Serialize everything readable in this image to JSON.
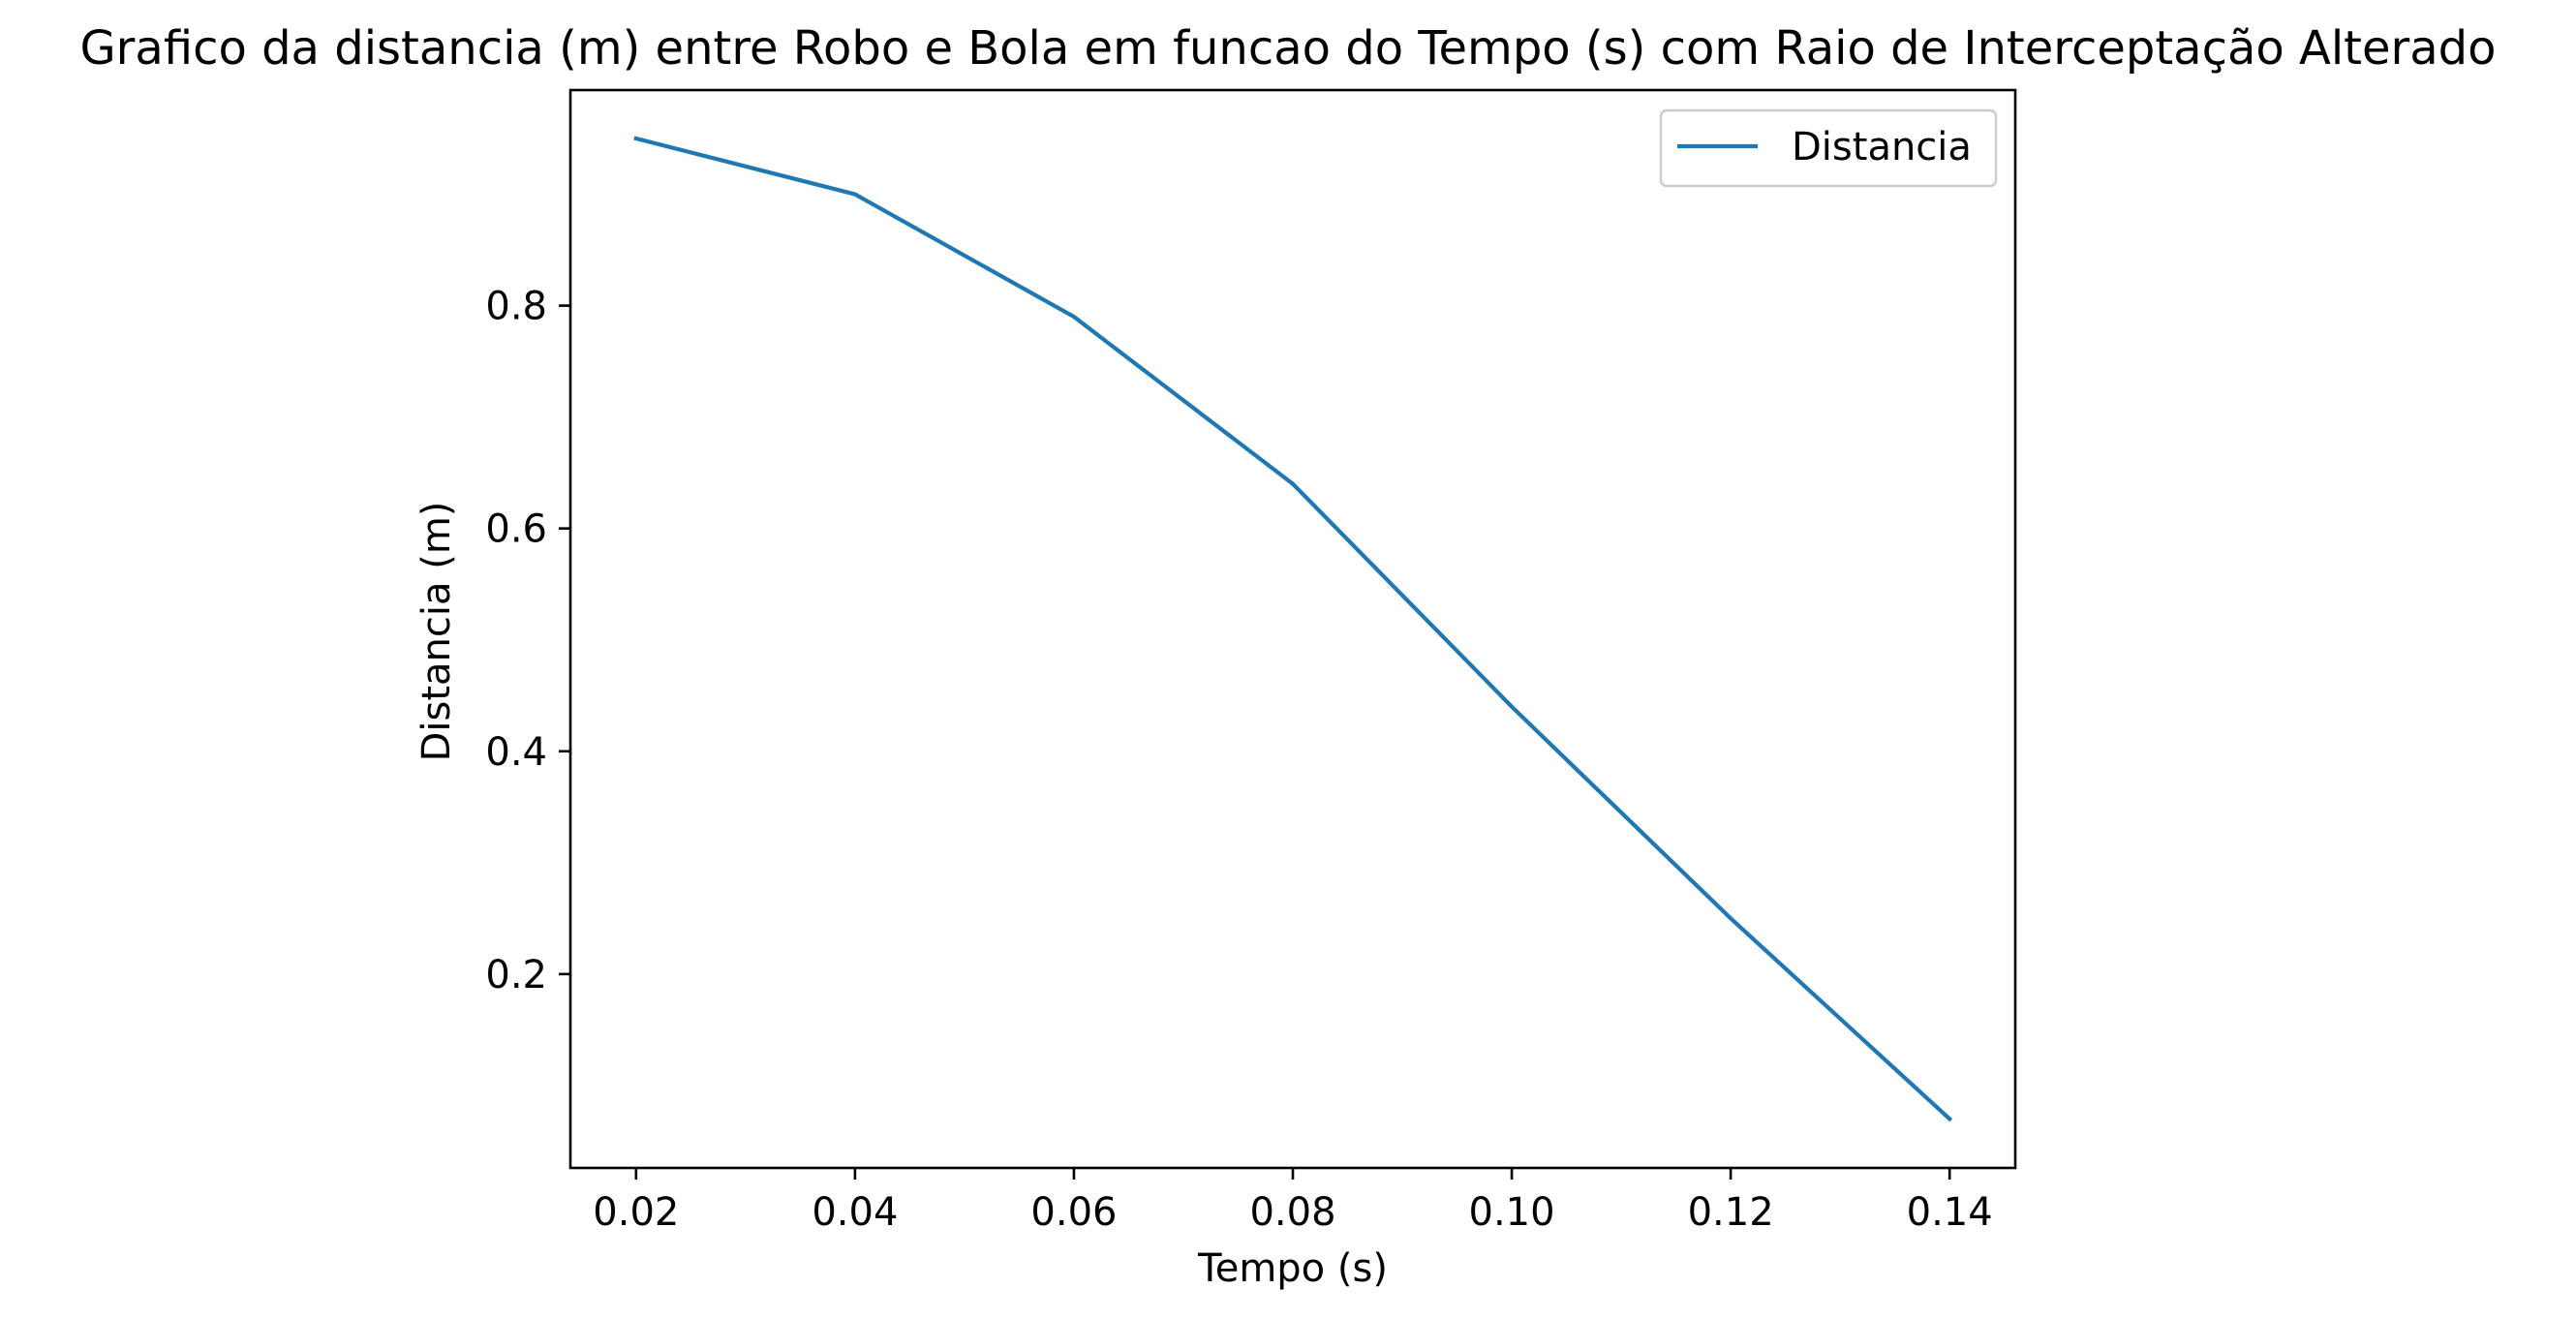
{
  "chart_data": {
    "type": "line",
    "title": "Grafico da distancia (m) entre Robo e Bola em funcao do Tempo (s) com Raio de Interceptação Alterado",
    "xlabel": "Tempo (s)",
    "ylabel": "Distancia (m)",
    "xlim": [
      0.014,
      0.146
    ],
    "ylim": [
      0.026,
      0.9935
    ],
    "x_ticks": [
      0.02,
      0.04,
      0.06,
      0.08,
      0.1,
      0.12,
      0.14
    ],
    "x_tick_labels": [
      "0.02",
      "0.04",
      "0.06",
      "0.08",
      "0.10",
      "0.12",
      "0.14"
    ],
    "y_ticks": [
      0.2,
      0.4,
      0.6,
      0.8
    ],
    "y_tick_labels": [
      "0.2",
      "0.4",
      "0.6",
      "0.8"
    ],
    "grid": false,
    "legend_position": "top-right",
    "series": [
      {
        "name": "Distancia",
        "color": "#1f77b4",
        "x": [
          0.02,
          0.04,
          0.06,
          0.08,
          0.1,
          0.12,
          0.14
        ],
        "y": [
          0.95,
          0.9,
          0.79,
          0.64,
          0.44,
          0.25,
          0.07
        ]
      }
    ]
  }
}
